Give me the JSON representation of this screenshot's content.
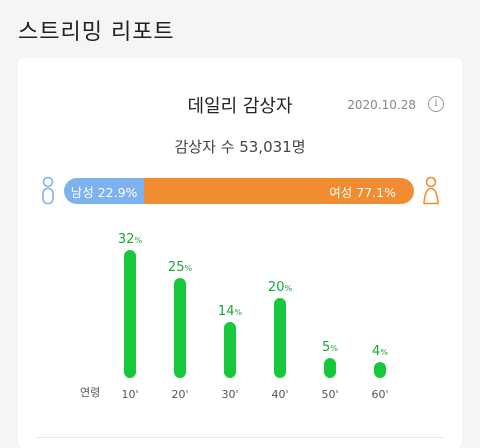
{
  "page": {
    "title": "스트리밍 리포트"
  },
  "card": {
    "title": "데일리 감상자",
    "date": "2020.10.28",
    "info_icon": "info-icon",
    "viewers_label": "감상자 수 53,031명"
  },
  "gender": {
    "male_label": "남성 22.9%",
    "female_label": "여성 77.1%",
    "male_share": 22.9,
    "female_share": 77.1,
    "male_color": "#7eb2ef",
    "female_color": "#f28c30"
  },
  "age_axis_label": "연령",
  "chart_data": {
    "type": "bar",
    "categories": [
      "10'",
      "20'",
      "30'",
      "40'",
      "50'",
      "60'"
    ],
    "values": [
      32,
      25,
      14,
      20,
      5,
      4
    ],
    "unit": "%",
    "bar_color": "#17c93a",
    "label_color": "#17a834"
  }
}
